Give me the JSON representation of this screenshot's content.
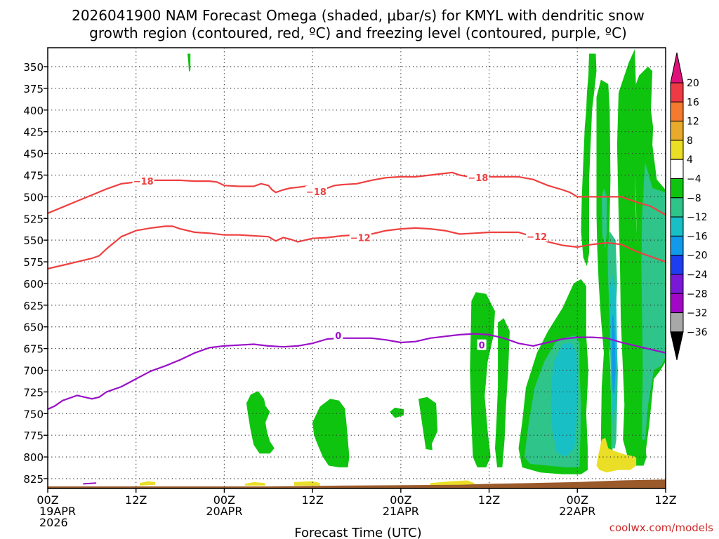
{
  "colors": {
    "dgz": "#ee4040",
    "freezing": "#9a10c8",
    "ground": "#9a5a2a",
    "grid": "#333333",
    "credit": "#cc2a2a"
  },
  "chart_data": {
    "type": "time-height cross section",
    "title_line1": "2026041900 NAM Forecast Omega (shaded, μbar/s) for KMYL with dendritic snow",
    "title_line2": "growth region (contoured, red, ºC) and freezing level (contoured, purple, ºC)",
    "xlabel": "Forecast Time (UTC)",
    "credit": "coolwx.com/models",
    "x_range_hours": [
      0,
      84
    ],
    "y_range_hpa": [
      335,
      840
    ],
    "pressure_ticks": [
      350,
      375,
      400,
      425,
      450,
      475,
      500,
      525,
      550,
      575,
      600,
      625,
      650,
      675,
      700,
      725,
      750,
      775,
      800,
      825
    ],
    "x_ticks": [
      {
        "hour": 0,
        "line1": "00Z",
        "line2": "19APR",
        "line3": "2026"
      },
      {
        "hour": 12,
        "line1": "12Z",
        "line2": "",
        "line3": ""
      },
      {
        "hour": 24,
        "line1": "00Z",
        "line2": "20APR",
        "line3": ""
      },
      {
        "hour": 36,
        "line1": "12Z",
        "line2": "",
        "line3": ""
      },
      {
        "hour": 48,
        "line1": "00Z",
        "line2": "21APR",
        "line3": ""
      },
      {
        "hour": 60,
        "line1": "12Z",
        "line2": "",
        "line3": ""
      },
      {
        "hour": 72,
        "line1": "00Z",
        "line2": "22APR",
        "line3": ""
      },
      {
        "hour": 84,
        "line1": "12Z",
        "line2": "",
        "line3": ""
      }
    ],
    "colorbar": {
      "labels": [
        "20",
        "16",
        "12",
        "8",
        "4",
        "−4",
        "−8",
        "−12",
        "−16",
        "−20",
        "−24",
        "−28",
        "−32",
        "−36"
      ],
      "colors": [
        "#ee3a44",
        "#f47a30",
        "#e8aa2a",
        "#eade26",
        "#ffffff",
        "#0fc40f",
        "#2ec48a",
        "#18c0c6",
        "#129aea",
        "#1c3ef0",
        "#7a18d8",
        "#a008c6",
        "#a8a8a8"
      ],
      "top_arrow": "#e0107a",
      "bottom_arrow": "#000000"
    },
    "series": [
      {
        "name": "-18 C isotherm",
        "color": "#ee4040",
        "labels": [
          {
            "text": "−18",
            "hour": 13,
            "p": 482
          },
          {
            "text": "−18",
            "hour": 36.5,
            "p": 494
          },
          {
            "text": "−18",
            "hour": 58.5,
            "p": 478
          }
        ],
        "points": [
          [
            0,
            519
          ],
          [
            2,
            512
          ],
          [
            4,
            505
          ],
          [
            6,
            498
          ],
          [
            8,
            491
          ],
          [
            10,
            485
          ],
          [
            12,
            483
          ],
          [
            14,
            481
          ],
          [
            16,
            481
          ],
          [
            18,
            481
          ],
          [
            20,
            482
          ],
          [
            22,
            482
          ],
          [
            23,
            483
          ],
          [
            24,
            487
          ],
          [
            26,
            488
          ],
          [
            28,
            488
          ],
          [
            29,
            485
          ],
          [
            30,
            487
          ],
          [
            30.5,
            492
          ],
          [
            31,
            495
          ],
          [
            32,
            492
          ],
          [
            33,
            490
          ],
          [
            34,
            489
          ],
          [
            35,
            488
          ],
          [
            36,
            489
          ],
          [
            37,
            490
          ],
          [
            38,
            490
          ],
          [
            39,
            487
          ],
          [
            40,
            486
          ],
          [
            42,
            485
          ],
          [
            44,
            481
          ],
          [
            46,
            478
          ],
          [
            48,
            477
          ],
          [
            50,
            477
          ],
          [
            52,
            475
          ],
          [
            54,
            473
          ],
          [
            55,
            472
          ],
          [
            56,
            475
          ],
          [
            58,
            478
          ],
          [
            60,
            477
          ],
          [
            62,
            477
          ],
          [
            64,
            477
          ],
          [
            66,
            480
          ],
          [
            68,
            487
          ],
          [
            70,
            492
          ],
          [
            71,
            495
          ],
          [
            72,
            500
          ],
          [
            74,
            500
          ],
          [
            76,
            500
          ],
          [
            77,
            500
          ],
          [
            78,
            500
          ],
          [
            80,
            506
          ],
          [
            82,
            511
          ],
          [
            84,
            521
          ]
        ]
      },
      {
        "name": "-12 C isotherm",
        "color": "#ee4040",
        "labels": [
          {
            "text": "−12",
            "hour": 42.5,
            "p": 547
          },
          {
            "text": "−12",
            "hour": 66.5,
            "p": 546
          }
        ],
        "points": [
          [
            0,
            583
          ],
          [
            2,
            579
          ],
          [
            4,
            575
          ],
          [
            6,
            571
          ],
          [
            7,
            568
          ],
          [
            8,
            560
          ],
          [
            9,
            553
          ],
          [
            10,
            546
          ],
          [
            12,
            539
          ],
          [
            14,
            536
          ],
          [
            16,
            534
          ],
          [
            17,
            534
          ],
          [
            18,
            537
          ],
          [
            20,
            541
          ],
          [
            22,
            542
          ],
          [
            24,
            544
          ],
          [
            26,
            544
          ],
          [
            28,
            545
          ],
          [
            30,
            546
          ],
          [
            31,
            551
          ],
          [
            32,
            547
          ],
          [
            33,
            549
          ],
          [
            34,
            552
          ],
          [
            36,
            548
          ],
          [
            38,
            547
          ],
          [
            40,
            545
          ],
          [
            42,
            544
          ],
          [
            44,
            543
          ],
          [
            46,
            539
          ],
          [
            48,
            537
          ],
          [
            50,
            536
          ],
          [
            52,
            537
          ],
          [
            54,
            539
          ],
          [
            56,
            543
          ],
          [
            58,
            542
          ],
          [
            60,
            541
          ],
          [
            62,
            541
          ],
          [
            64,
            541
          ],
          [
            66,
            546
          ],
          [
            68,
            552
          ],
          [
            70,
            556
          ],
          [
            72,
            558
          ],
          [
            74,
            555
          ],
          [
            75,
            554
          ],
          [
            76,
            553
          ],
          [
            78,
            555
          ],
          [
            80,
            563
          ],
          [
            82,
            569
          ],
          [
            84,
            575
          ]
        ]
      },
      {
        "name": "0 C freezing level",
        "color": "#9a10c8",
        "labels": [
          {
            "text": "0",
            "hour": 39.5,
            "p": 660
          },
          {
            "text": "0",
            "hour": 59,
            "p": 671
          }
        ],
        "points": [
          [
            0,
            745
          ],
          [
            1,
            741
          ],
          [
            2,
            735
          ],
          [
            4,
            729
          ],
          [
            6,
            733
          ],
          [
            7,
            731
          ],
          [
            8,
            725
          ],
          [
            10,
            719
          ],
          [
            12,
            710
          ],
          [
            14,
            701
          ],
          [
            16,
            695
          ],
          [
            18,
            688
          ],
          [
            20,
            680
          ],
          [
            22,
            674
          ],
          [
            24,
            672
          ],
          [
            26,
            671
          ],
          [
            28,
            670
          ],
          [
            30,
            672
          ],
          [
            32,
            673
          ],
          [
            34,
            672
          ],
          [
            36,
            669
          ],
          [
            38,
            664
          ],
          [
            40,
            663
          ],
          [
            42,
            663
          ],
          [
            44,
            663
          ],
          [
            46,
            665
          ],
          [
            48,
            668
          ],
          [
            50,
            667
          ],
          [
            52,
            663
          ],
          [
            54,
            661
          ],
          [
            56,
            659
          ],
          [
            58,
            658
          ],
          [
            60,
            659
          ],
          [
            62,
            663
          ],
          [
            64,
            669
          ],
          [
            66,
            672
          ],
          [
            68,
            668
          ],
          [
            70,
            664
          ],
          [
            72,
            662
          ],
          [
            74,
            662
          ],
          [
            76,
            663
          ],
          [
            78,
            668
          ],
          [
            80,
            672
          ],
          [
            82,
            676
          ],
          [
            84,
            680
          ]
        ]
      }
    ],
    "omega_regions": [
      {
        "name": "green",
        "value_range": "-4 to -8",
        "color": "#0fc40f"
      },
      {
        "name": "teal",
        "value_range": "-8 to -12",
        "color": "#2ec48a"
      },
      {
        "name": "cyan",
        "value_range": "-12 to -16",
        "color": "#18c0c6"
      },
      {
        "name": "blue",
        "value_range": "-16 to -20",
        "color": "#129aea"
      },
      {
        "name": "yellow",
        "value_range": "4 to 8",
        "color": "#eade26"
      }
    ]
  }
}
